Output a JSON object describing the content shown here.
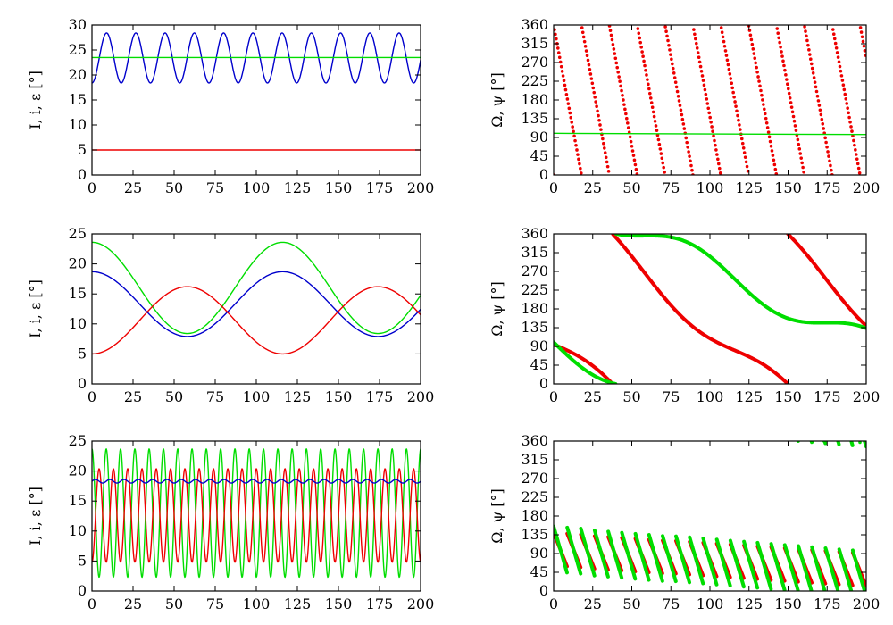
{
  "chart_data": [
    {
      "type": "line",
      "ylabel": "I, i, ε [°]",
      "xlim": [
        0,
        200
      ],
      "ylim": [
        0,
        30
      ],
      "xticks": [
        0,
        25,
        50,
        75,
        100,
        125,
        150,
        175,
        200
      ],
      "yticks": [
        0,
        5,
        10,
        15,
        20,
        25,
        30
      ],
      "series": [
        {
          "color": "#0000cc",
          "model": {
            "kind": "sine",
            "mean": 23.4,
            "amp": 5.0,
            "period": 17.8,
            "phase": -1.5708
          }
        },
        {
          "color": "#00dd00",
          "model": {
            "kind": "const",
            "value": 23.5
          }
        },
        {
          "color": "#ee0000",
          "model": {
            "kind": "const",
            "value": 5.0
          }
        }
      ]
    },
    {
      "type": "scatter",
      "ylabel": "Ω, ψ [°]",
      "xlim": [
        0,
        200
      ],
      "ylim": [
        0,
        360
      ],
      "xticks": [
        0,
        25,
        50,
        75,
        100,
        125,
        150,
        175,
        200
      ],
      "yticks": [
        0,
        45,
        90,
        135,
        180,
        225,
        270,
        315,
        360
      ],
      "series": [
        {
          "color": "#ee0000",
          "style": "dots",
          "model": {
            "kind": "linear-wrap",
            "start": 360,
            "rate": -20.2,
            "step": 0.55
          }
        },
        {
          "color": "#00dd00",
          "style": "line",
          "model": {
            "kind": "linear",
            "start": 100,
            "rate": -0.015
          }
        }
      ]
    },
    {
      "type": "line",
      "ylabel": "I, i, ε [°]",
      "xlim": [
        0,
        200
      ],
      "ylim": [
        0,
        25
      ],
      "xticks": [
        0,
        25,
        50,
        75,
        100,
        125,
        150,
        175,
        200
      ],
      "yticks": [
        0,
        5,
        10,
        15,
        20,
        25
      ],
      "series": [
        {
          "color": "#00dd00",
          "model": {
            "kind": "sine",
            "mean": 16.0,
            "amp": 7.6,
            "period": 116,
            "phase": 1.5708
          }
        },
        {
          "color": "#0000cc",
          "model": {
            "kind": "sine",
            "mean": 13.3,
            "amp": 5.4,
            "period": 116,
            "phase": 1.5708
          }
        },
        {
          "color": "#ee0000",
          "model": {
            "kind": "sine",
            "mean": 10.6,
            "amp": 5.6,
            "period": 116,
            "phase": -1.5708
          }
        }
      ]
    },
    {
      "type": "scatter",
      "ylabel": "Ω, ψ [°]",
      "xlim": [
        0,
        200
      ],
      "ylim": [
        0,
        360
      ],
      "xticks": [
        0,
        25,
        50,
        75,
        100,
        125,
        150,
        175,
        200
      ],
      "yticks": [
        0,
        45,
        90,
        135,
        180,
        225,
        270,
        315,
        360
      ],
      "series": [
        {
          "color": "#ee0000",
          "style": "thick",
          "model": {
            "kind": "wobble-wrap",
            "start": 95,
            "rate": -3.23,
            "amp": 30,
            "period": 116,
            "phase": 0,
            "step": 0.4
          }
        },
        {
          "color": "#00dd00",
          "style": "thick",
          "model": {
            "kind": "wobble-wrap",
            "start": 100,
            "rate": -1.8,
            "amp": 34,
            "period": 116,
            "phase": 3.1416,
            "step": 0.4
          }
        }
      ]
    },
    {
      "type": "line",
      "ylabel": "I, i, ε [°]",
      "xlim": [
        0,
        200
      ],
      "ylim": [
        0,
        25
      ],
      "xticks": [
        0,
        25,
        50,
        75,
        100,
        125,
        150,
        175,
        200
      ],
      "yticks": [
        0,
        5,
        10,
        15,
        20,
        25
      ],
      "series": [
        {
          "color": "#00dd00",
          "model": {
            "kind": "sine",
            "mean": 13.0,
            "amp": 10.7,
            "period": 8.7,
            "phase": 1.5708
          }
        },
        {
          "color": "#ee0000",
          "model": {
            "kind": "sine",
            "mean": 12.6,
            "amp": 7.8,
            "period": 8.7,
            "phase": -1.5708
          }
        },
        {
          "color": "#0000cc",
          "model": {
            "kind": "sine",
            "mean": 18.3,
            "amp": 0.3,
            "period": 8.7,
            "phase": 0
          }
        }
      ]
    },
    {
      "type": "scatter",
      "ylabel": "Ω, ψ [°]",
      "xlim": [
        0,
        200
      ],
      "ylim": [
        0,
        360
      ],
      "xticks": [
        0,
        25,
        50,
        75,
        100,
        125,
        150,
        175,
        200
      ],
      "yticks": [
        0,
        45,
        90,
        135,
        180,
        225,
        270,
        315,
        360
      ],
      "series": [
        {
          "color": "#ee0000",
          "style": "thick",
          "model": {
            "kind": "sawtooth",
            "start": 100,
            "trend": -0.25,
            "amp": 40,
            "period": 8.7,
            "step": 0.15
          }
        },
        {
          "color": "#00dd00",
          "style": "thick",
          "model": {
            "kind": "sawtooth",
            "start": 100,
            "trend": -0.3,
            "amp": 55,
            "period": 8.7,
            "step": 0.15
          }
        },
        {
          "color": "#00dd00",
          "style": "dots",
          "model": {
            "kind": "points",
            "x": [
              173,
              182,
              196
            ],
            "y": [
              360,
              359,
              357
            ]
          }
        }
      ]
    }
  ]
}
